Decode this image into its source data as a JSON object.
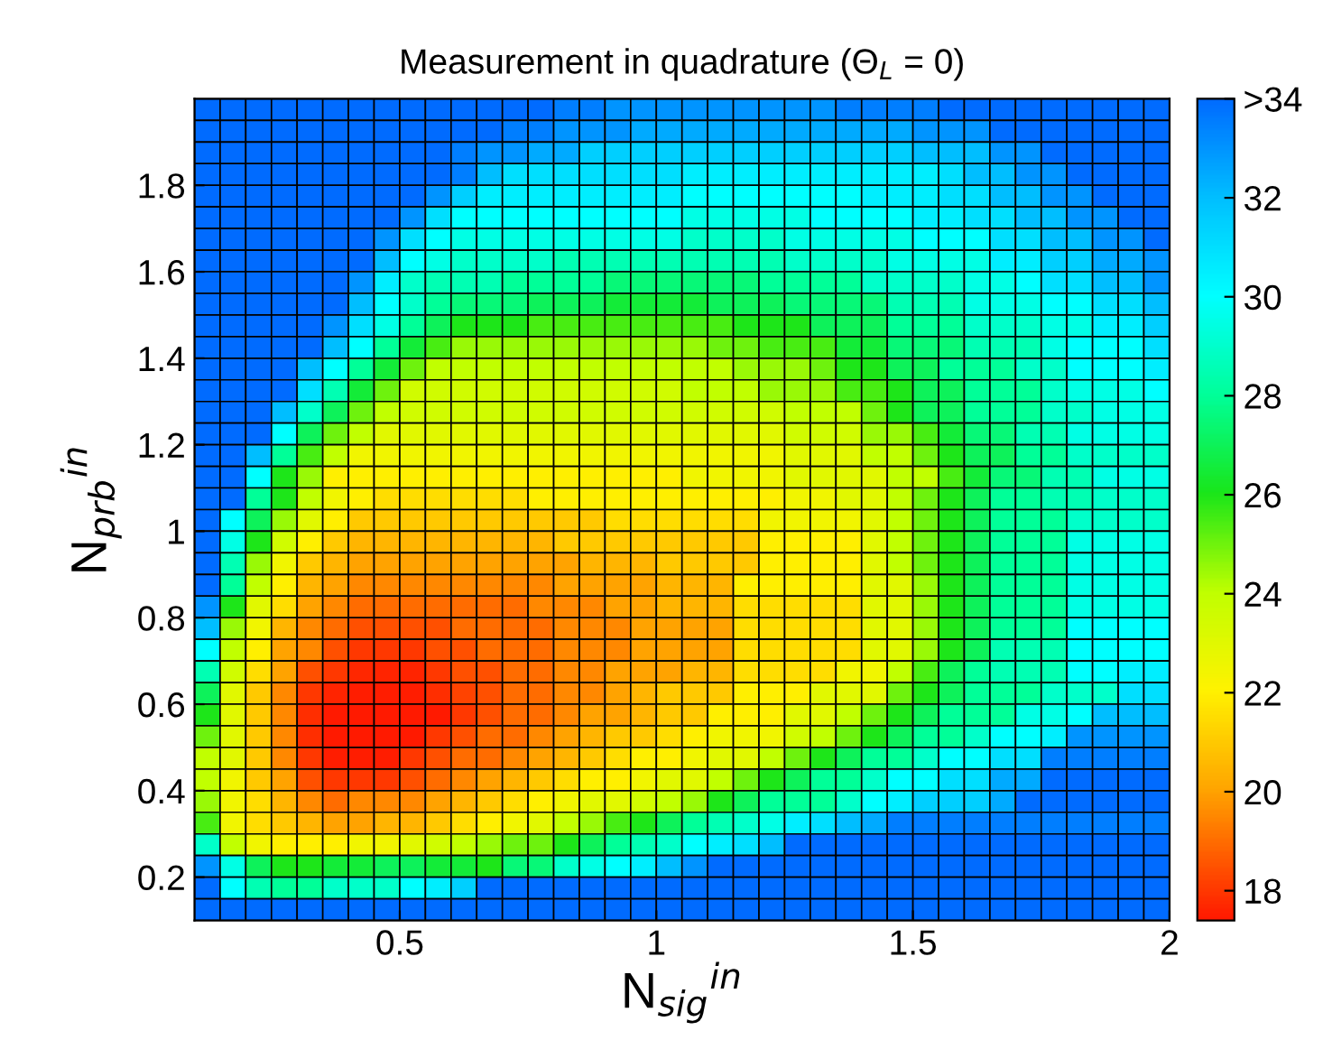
{
  "chart_data": {
    "type": "heatmap",
    "title": "Measurement in quadrature (Θ$_{L}$ = 0)",
    "xlabel": "N$_{sig}$$^{in}$",
    "ylabel": "N$_{prb}$$^{in}$",
    "xlim": [
      0.1,
      2
    ],
    "ylim": [
      0.1,
      2
    ],
    "xticks": [
      0.5,
      1,
      1.5,
      2
    ],
    "yticks": [
      0.2,
      0.4,
      0.6,
      0.8,
      1,
      1.2,
      1.4,
      1.6,
      1.8
    ],
    "clim": [
      17.4,
      34
    ],
    "cticks": [
      18,
      20,
      22,
      24,
      26,
      28,
      30,
      32,
      {
        "value": 34,
        "label": ">34"
      }
    ],
    "cells": [
      [
        34,
        34,
        34,
        34,
        34,
        34,
        34,
        34,
        34,
        34,
        34,
        34,
        34,
        34,
        33.5,
        33.5,
        33,
        33,
        33,
        33,
        33,
        33,
        33,
        33,
        33,
        33.5,
        33.5,
        33.5,
        33.5,
        34,
        34,
        34,
        34,
        34,
        34,
        34,
        34,
        34
      ],
      [
        34,
        34,
        34,
        34,
        34,
        34,
        34,
        34,
        34,
        34,
        34,
        34,
        33.5,
        33.5,
        33,
        33,
        33,
        32.5,
        32.5,
        32.5,
        32.5,
        32.5,
        32.5,
        32.5,
        32.5,
        32.5,
        32.5,
        32.5,
        33,
        33,
        33,
        34,
        34,
        34,
        34,
        34,
        34,
        34
      ],
      [
        34,
        34,
        34,
        34,
        34,
        34,
        34,
        34,
        34,
        34,
        33.5,
        33,
        33,
        32.5,
        32.5,
        31.5,
        31.5,
        31.5,
        31.5,
        31.5,
        31.5,
        31.5,
        31.5,
        31.5,
        31.5,
        31.5,
        31.5,
        31.5,
        32,
        32,
        32,
        33,
        33,
        34,
        34,
        34,
        34,
        34
      ],
      [
        34,
        34,
        34,
        34,
        34,
        34,
        34,
        34,
        34,
        34,
        33.5,
        32,
        31,
        31,
        31,
        31,
        31,
        31,
        31,
        30.5,
        30.5,
        30.5,
        30.5,
        30.5,
        30.5,
        30.5,
        30.5,
        30.5,
        30.5,
        31,
        32,
        32,
        33,
        33,
        34,
        34,
        34,
        34
      ],
      [
        34,
        34,
        34,
        34,
        34,
        34,
        34,
        34,
        34,
        33,
        31.5,
        30.5,
        30.5,
        30.5,
        30.5,
        30.5,
        30.5,
        30.5,
        30.5,
        30,
        30,
        30,
        30,
        30,
        30,
        30,
        30.5,
        30.5,
        30.5,
        31,
        31,
        32,
        32,
        33,
        33,
        34,
        34,
        34
      ],
      [
        34,
        34,
        34,
        34,
        34,
        34,
        34,
        34,
        33,
        31,
        30,
        30,
        30,
        30,
        30,
        30,
        30,
        30,
        30,
        29.5,
        29.5,
        29.5,
        29.5,
        29.5,
        30,
        30,
        30,
        30,
        30.5,
        30.5,
        31,
        31,
        32,
        32,
        33,
        33,
        34,
        34
      ],
      [
        34,
        34,
        34,
        34,
        34,
        34,
        34,
        33,
        31,
        30,
        29.5,
        29.5,
        29.5,
        29.5,
        29.5,
        29.5,
        29.5,
        29.5,
        29.5,
        29,
        29,
        29,
        29,
        29.5,
        29.5,
        29.5,
        29.5,
        29.5,
        30,
        30,
        30,
        31,
        31,
        32,
        32,
        33,
        33,
        34
      ],
      [
        34,
        34,
        34,
        34,
        34,
        34,
        34,
        32,
        30,
        29.5,
        29,
        29,
        29,
        29,
        28.5,
        28.5,
        28.5,
        28.5,
        28.5,
        28.5,
        28.5,
        28.5,
        28.5,
        29,
        29,
        29,
        29,
        29.5,
        29.5,
        29.5,
        29.5,
        30.5,
        30.5,
        31.5,
        31.5,
        32.5,
        32.5,
        33
      ],
      [
        34,
        34,
        34,
        34,
        34,
        34,
        33,
        30.5,
        29,
        28.5,
        28.5,
        28.5,
        28,
        28,
        28,
        28,
        27.5,
        27.5,
        27.5,
        27.5,
        27.5,
        27.5,
        28,
        28,
        28,
        28,
        29,
        29,
        29,
        29,
        29.5,
        29.5,
        30,
        31,
        31,
        32,
        32,
        33
      ],
      [
        34,
        34,
        34,
        34,
        34,
        34,
        32,
        30,
        29,
        28,
        27.5,
        27.5,
        27.5,
        27,
        27,
        27,
        26.5,
        26.5,
        26.5,
        26.5,
        27,
        27,
        27,
        27.5,
        27.5,
        27.5,
        27.5,
        28.5,
        28.5,
        28.5,
        29.5,
        29.5,
        29.5,
        30,
        30,
        31,
        31,
        32
      ],
      [
        34,
        34,
        34,
        34,
        34,
        33,
        31,
        29.5,
        28,
        27,
        26,
        26,
        26,
        25.5,
        25.5,
        25.5,
        25.5,
        25.5,
        25.5,
        25.5,
        25.5,
        26,
        26,
        26,
        27,
        27,
        27,
        28,
        28,
        28,
        29,
        29,
        29,
        29.5,
        29.5,
        30.5,
        30.5,
        31.5
      ],
      [
        34,
        34,
        34,
        34,
        34,
        32,
        30,
        28,
        26.5,
        25.5,
        24.5,
        24.5,
        24.5,
        24.5,
        24.5,
        24.5,
        24.5,
        24.5,
        24.5,
        24.5,
        25,
        25,
        25.5,
        25.5,
        25.5,
        26.5,
        26.5,
        27.5,
        27.5,
        27.5,
        28.5,
        28.5,
        28.5,
        29.5,
        30,
        30,
        30,
        31
      ],
      [
        34,
        34,
        34,
        34,
        32,
        30,
        28,
        26.5,
        25,
        24,
        24,
        24,
        24,
        24,
        24,
        24,
        24,
        24,
        24,
        24,
        24,
        24.5,
        24.5,
        24.5,
        25,
        26,
        26,
        27,
        27,
        28,
        28,
        28,
        29,
        29,
        30,
        30,
        30,
        30.5
      ],
      [
        34,
        34,
        34,
        34,
        31,
        28.5,
        26.5,
        25,
        23.5,
        23.5,
        23.5,
        23.5,
        23.5,
        23.5,
        23.5,
        23.5,
        23.5,
        23.5,
        23.5,
        24,
        24,
        24,
        24.5,
        24.5,
        24.5,
        25.5,
        25.5,
        26,
        27,
        27,
        28,
        28,
        28,
        29,
        29.5,
        29.5,
        29.5,
        30
      ],
      [
        34,
        34,
        34,
        32,
        29,
        27,
        25,
        24,
        23.5,
        23.5,
        23.5,
        23.5,
        23.5,
        23.5,
        23.5,
        23.5,
        23.5,
        23.5,
        23.5,
        23.5,
        23.5,
        23.5,
        23.5,
        24,
        24,
        24,
        25,
        26,
        27,
        27,
        28,
        28,
        28,
        29,
        29,
        29.5,
        29.5,
        29.5
      ],
      [
        34,
        34,
        34,
        30,
        27,
        25,
        24,
        23,
        23,
        23,
        23,
        23,
        23,
        23,
        23,
        23,
        23,
        23,
        23,
        23,
        23,
        23,
        23,
        23.5,
        23.5,
        23.5,
        24.5,
        24.5,
        25.5,
        26.5,
        27.5,
        27.5,
        28.5,
        28.5,
        29.5,
        29.5,
        29.5,
        29.5
      ],
      [
        34,
        34,
        32,
        28,
        25.5,
        24,
        22.5,
        22.5,
        22.5,
        22.5,
        22.5,
        22.5,
        22.5,
        22.5,
        22.5,
        22.5,
        22.5,
        22.5,
        22.5,
        22.5,
        22.5,
        22.5,
        22.5,
        23,
        23,
        23,
        24,
        24,
        25,
        26,
        27,
        27,
        28,
        28,
        29,
        29,
        29,
        29
      ],
      [
        34,
        34,
        30,
        26,
        24.5,
        22,
        22,
        22,
        22,
        22,
        22,
        22,
        22,
        22,
        22,
        22,
        22,
        22,
        22,
        22.5,
        22.5,
        22.5,
        22.5,
        23,
        23,
        23,
        23,
        24,
        24,
        25.5,
        26.5,
        27.5,
        27.5,
        28.5,
        28.5,
        29.5,
        29.5,
        29.5
      ],
      [
        34,
        34,
        28,
        26,
        24,
        22.5,
        22,
        21.5,
        21.5,
        21.5,
        21.5,
        21.5,
        21.5,
        22,
        22,
        22,
        22,
        22,
        22,
        22,
        22,
        22,
        22,
        22.5,
        22.5,
        23,
        23,
        24,
        25,
        26,
        27,
        28,
        28,
        28.5,
        28.5,
        29,
        29,
        29
      ],
      [
        34,
        30,
        27,
        24.5,
        23,
        22,
        21,
        21,
        21,
        21,
        21,
        21,
        21,
        21,
        21,
        21,
        21.5,
        21.5,
        21.5,
        21.5,
        21.5,
        21.5,
        22.5,
        22.5,
        22.5,
        22.5,
        23,
        24,
        25,
        26,
        27,
        28,
        28,
        28,
        29,
        29,
        29,
        29
      ],
      [
        34,
        29.5,
        26,
        23.5,
        22,
        21,
        20.5,
        20.5,
        20.5,
        20.5,
        20.5,
        20.5,
        20.5,
        20.5,
        21,
        21,
        21,
        21,
        21,
        21,
        21,
        21,
        22,
        22,
        22,
        22,
        23,
        24,
        25,
        26,
        27,
        28,
        28,
        28,
        29.5,
        29.5,
        29.5,
        29.5
      ],
      [
        34,
        28.5,
        24.5,
        22.5,
        21,
        20.5,
        20,
        20,
        20,
        20,
        20,
        20,
        20,
        20,
        20,
        20.5,
        20.5,
        20.5,
        21,
        21,
        21,
        21,
        22,
        22,
        22,
        22,
        23,
        24,
        25,
        26,
        27,
        28,
        28,
        28,
        29.5,
        29.5,
        29.5,
        29.5
      ],
      [
        34,
        28,
        24,
        22,
        20.5,
        20,
        19.5,
        19.5,
        19.5,
        19.5,
        19.5,
        19.5,
        19.5,
        19.5,
        20,
        20,
        20,
        20,
        20.5,
        20.5,
        20.5,
        22,
        22,
        22,
        22,
        22,
        23,
        23,
        24.5,
        26,
        27,
        28,
        28,
        28,
        29.5,
        29.5,
        29.5,
        29.5
      ],
      [
        33,
        26,
        23,
        21.5,
        20,
        19.5,
        19,
        19,
        19,
        19,
        19,
        19,
        19,
        19.5,
        19.5,
        19.5,
        20,
        20,
        20.5,
        20.5,
        20.5,
        21.5,
        21.5,
        21.5,
        21.5,
        21.5,
        23,
        23,
        24.5,
        26,
        27,
        28,
        28,
        28,
        29.5,
        29.5,
        29.5,
        29.5
      ],
      [
        32,
        24.5,
        22.5,
        20.5,
        19.5,
        19,
        18.5,
        18.5,
        18.5,
        18.5,
        19,
        19,
        19,
        19,
        19.5,
        19.5,
        19.5,
        20,
        20,
        20,
        20,
        21.5,
        21.5,
        21.5,
        21.5,
        21.5,
        23,
        23,
        24.5,
        26,
        27,
        28,
        28,
        28,
        30,
        30,
        30,
        30
      ],
      [
        30,
        24,
        22,
        20,
        19.5,
        18.5,
        18,
        18,
        18,
        18.5,
        18.5,
        19,
        19,
        19,
        19.5,
        19.5,
        19.5,
        20,
        20,
        20,
        20,
        21.5,
        21.5,
        21.5,
        21.5,
        21.5,
        23,
        23,
        24.5,
        26,
        27,
        28.5,
        28.5,
        28.5,
        30,
        30,
        30,
        30
      ],
      [
        28.5,
        23.5,
        21.5,
        20,
        18.5,
        18,
        17.7,
        17.6,
        17.6,
        18,
        18.5,
        18.5,
        19,
        19,
        19.5,
        19.5,
        20,
        20,
        20,
        20.5,
        20.5,
        21.5,
        21.5,
        21.5,
        21.5,
        22.5,
        22.5,
        24,
        25.5,
        27,
        28,
        28.5,
        28.5,
        28.5,
        30,
        30,
        30.5,
        30.5
      ],
      [
        27,
        23,
        21,
        19.5,
        18,
        17.6,
        17.5,
        17.5,
        17.5,
        17.8,
        18.2,
        18.5,
        19,
        19,
        19.5,
        19.5,
        20,
        20.5,
        21,
        21,
        21,
        22,
        22,
        22,
        23,
        23,
        23,
        25,
        26,
        27,
        28,
        28,
        28,
        29,
        29,
        29,
        31,
        31
      ],
      [
        26,
        23,
        21,
        19.5,
        17.8,
        17.4,
        17.4,
        17.4,
        17.4,
        17.4,
        18,
        18.5,
        19,
        19,
        19.5,
        20,
        20,
        20.5,
        21,
        21,
        22,
        22,
        22,
        23,
        23,
        24,
        25,
        26,
        27,
        28,
        28,
        28,
        29.5,
        29.5,
        30,
        32,
        32,
        32
      ],
      [
        25,
        23,
        21,
        19.5,
        17.8,
        17.4,
        17.4,
        17.4,
        17.4,
        18,
        18.5,
        19,
        19,
        19.5,
        20,
        20.5,
        21,
        21,
        21.5,
        22,
        22.5,
        22.5,
        22.5,
        23.5,
        24,
        25,
        26,
        27,
        28,
        28,
        29,
        30,
        30,
        30.5,
        33,
        33,
        33,
        33
      ],
      [
        24,
        23,
        21,
        19.5,
        18,
        17.5,
        17.5,
        17.5,
        18,
        18.5,
        19,
        19,
        19.5,
        20,
        20.5,
        21,
        21.5,
        22,
        22,
        22.5,
        23,
        23,
        24,
        25,
        26,
        27,
        28,
        28,
        29,
        30,
        30,
        31,
        31,
        33.5,
        33.5,
        33.5,
        33.5,
        33.5
      ],
      [
        24,
        22.5,
        21,
        20,
        18.5,
        18,
        18,
        18,
        18.5,
        19,
        19.5,
        20,
        20.5,
        21,
        21.5,
        22,
        22,
        22.5,
        23,
        23,
        24,
        25,
        26,
        27,
        28,
        28,
        29,
        30,
        30,
        31,
        31,
        32.5,
        32.5,
        34,
        34,
        34,
        34,
        34
      ],
      [
        24.5,
        22.5,
        21.5,
        20.5,
        19.5,
        19,
        19.5,
        19.5,
        19.5,
        20,
        20.5,
        21,
        21.5,
        22,
        22.5,
        23,
        23,
        23.5,
        24,
        24.5,
        26,
        27,
        28,
        28,
        28,
        29,
        30,
        30.5,
        31.5,
        31.5,
        31.5,
        32.5,
        34,
        34,
        34,
        34,
        34,
        34
      ],
      [
        25.5,
        22.5,
        21.5,
        21,
        20.5,
        20,
        20,
        20.5,
        20.5,
        21,
        21.5,
        22,
        22.5,
        23,
        24,
        24.5,
        25.5,
        26,
        27,
        28,
        28.5,
        29,
        29.5,
        30.5,
        31,
        32,
        32.5,
        33.5,
        33.5,
        33.5,
        33.5,
        33.5,
        33.5,
        33.5,
        33.5,
        33.5,
        33.5,
        33.5
      ],
      [
        29,
        24,
        22.5,
        22,
        22,
        22,
        22.5,
        22.5,
        23,
        23.5,
        24,
        24.5,
        25,
        25,
        26,
        27,
        28,
        28.5,
        29,
        30,
        30.5,
        31,
        32,
        34,
        34,
        34,
        34,
        34,
        34,
        34,
        34,
        34,
        34,
        34,
        34,
        34,
        34,
        34
      ],
      [
        33,
        29.5,
        27,
        26,
        26,
        26.5,
        26.5,
        27,
        27,
        26.5,
        26.5,
        26,
        27.5,
        27.5,
        29,
        29.5,
        30,
        30.5,
        32,
        33,
        34,
        34,
        34,
        34,
        34,
        34,
        34,
        34,
        34,
        34,
        34,
        34,
        34,
        34,
        34,
        34,
        34,
        34
      ],
      [
        34,
        30,
        28.5,
        28,
        28,
        29,
        29,
        29,
        30,
        30.5,
        31.5,
        34,
        34,
        34,
        34,
        34,
        34,
        34,
        34,
        34,
        34,
        34,
        34,
        34,
        34,
        34,
        34,
        34,
        34,
        34,
        34,
        34,
        34,
        34,
        34,
        34,
        34,
        34
      ],
      [
        34,
        34,
        34,
        34,
        34,
        34,
        34,
        34,
        34,
        34,
        34,
        34,
        34,
        34,
        34,
        34,
        34,
        34,
        34,
        34,
        34,
        34,
        34,
        34,
        34,
        34,
        34,
        34,
        34,
        34,
        34,
        34,
        34,
        34,
        34,
        34,
        34,
        34
      ]
    ]
  }
}
